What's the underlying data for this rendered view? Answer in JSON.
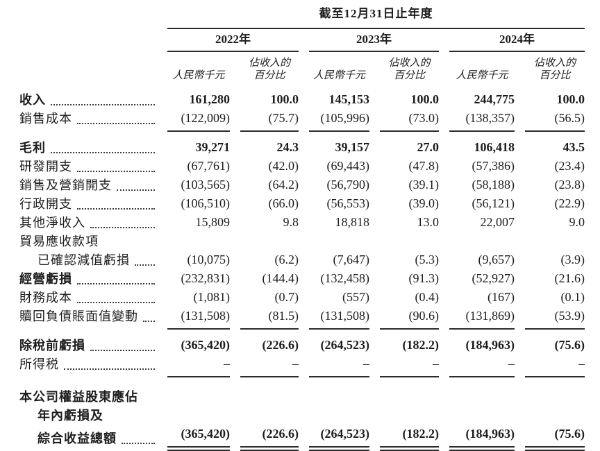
{
  "table": {
    "title": "截至12月31日止年度",
    "year_headers": [
      "2022年",
      "2023年",
      "2024年"
    ],
    "sub_headers": {
      "amount": "人民幣千元",
      "percent_line1": "佔收入的",
      "percent_line2": "百分比"
    },
    "rows": [
      {
        "label": "收入",
        "bold": true,
        "bold_values": true,
        "leader": true,
        "space": 10,
        "values": [
          "161,280",
          "100.0",
          "145,153",
          "100.0",
          "244,775",
          "100.0"
        ]
      },
      {
        "label": "銷售成本",
        "leader": true,
        "rule_below": true,
        "values": [
          "(122,009)",
          "(75.7)",
          "(105,996)",
          "(73.0)",
          "(138,357)",
          "(56.5)"
        ]
      },
      {
        "label": "毛利",
        "bold": true,
        "bold_values": true,
        "leader": true,
        "space": 9,
        "values": [
          "39,271",
          "24.3",
          "39,157",
          "27.0",
          "106,418",
          "43.5"
        ]
      },
      {
        "label": "研發開支",
        "leader": true,
        "values": [
          "(67,761)",
          "(42.0)",
          "(69,443)",
          "(47.8)",
          "(57,386)",
          "(23.4)"
        ]
      },
      {
        "label": "銷售及營銷開支",
        "leader": true,
        "values": [
          "(103,565)",
          "(64.2)",
          "(56,790)",
          "(39.1)",
          "(58,188)",
          "(23.8)"
        ]
      },
      {
        "label": "行政開支",
        "leader": true,
        "values": [
          "(106,510)",
          "(66.0)",
          "(56,553)",
          "(39.0)",
          "(56,121)",
          "(22.9)"
        ]
      },
      {
        "label": "其他淨收入",
        "leader": true,
        "values": [
          "15,809",
          "9.8",
          "18,818",
          "13.0",
          "22,007",
          "9.0"
        ]
      },
      {
        "label": "貿易應收款項",
        "values": null
      },
      {
        "label": "已確認減值虧損",
        "indent": 1,
        "leader": true,
        "values": [
          "(10,075)",
          "(6.2)",
          "(7,647)",
          "(5.3)",
          "(9,657)",
          "(3.9)"
        ]
      },
      {
        "label": "經營虧損",
        "bold": true,
        "leader": true,
        "values": [
          "(232,831)",
          "(144.4)",
          "(132,458)",
          "(91.3)",
          "(52,927)",
          "(21.6)"
        ]
      },
      {
        "label": "財務成本",
        "leader": true,
        "values": [
          "(1,081)",
          "(0.7)",
          "(557)",
          "(0.4)",
          "(167)",
          "(0.1)"
        ]
      },
      {
        "label": "贖回負債賬面值變動",
        "leader": true,
        "rule_below": true,
        "values": [
          "(131,508)",
          "(81.5)",
          "(131,508)",
          "(90.6)",
          "(131,869)",
          "(53.9)"
        ]
      },
      {
        "label": "除稅前虧損",
        "bold": true,
        "bold_values": true,
        "leader": true,
        "space": 9,
        "values": [
          "(365,420)",
          "(226.6)",
          "(264,523)",
          "(182.2)",
          "(184,963)",
          "(75.6)"
        ]
      },
      {
        "label": "所得税",
        "leader": true,
        "rule_below": true,
        "values": [
          "–",
          "–",
          "–",
          "–",
          "–",
          "–"
        ]
      },
      {
        "label": "本公司權益股東應佔",
        "bold": true,
        "space": 14,
        "values": null
      },
      {
        "label": "年內虧損及",
        "bold": true,
        "indent": 1,
        "values": null
      },
      {
        "label": "綜合收益總額",
        "bold": true,
        "bold_values": true,
        "indent": 1,
        "leader": true,
        "double_rule_below": true,
        "values": [
          "(365,420)",
          "(226.6)",
          "(264,523)",
          "(182.2)",
          "(184,963)",
          "(75.6)"
        ]
      }
    ]
  },
  "colors": {
    "text": "#1d1d1d",
    "rule": "#2c2c2c",
    "background": "#ffffff"
  }
}
